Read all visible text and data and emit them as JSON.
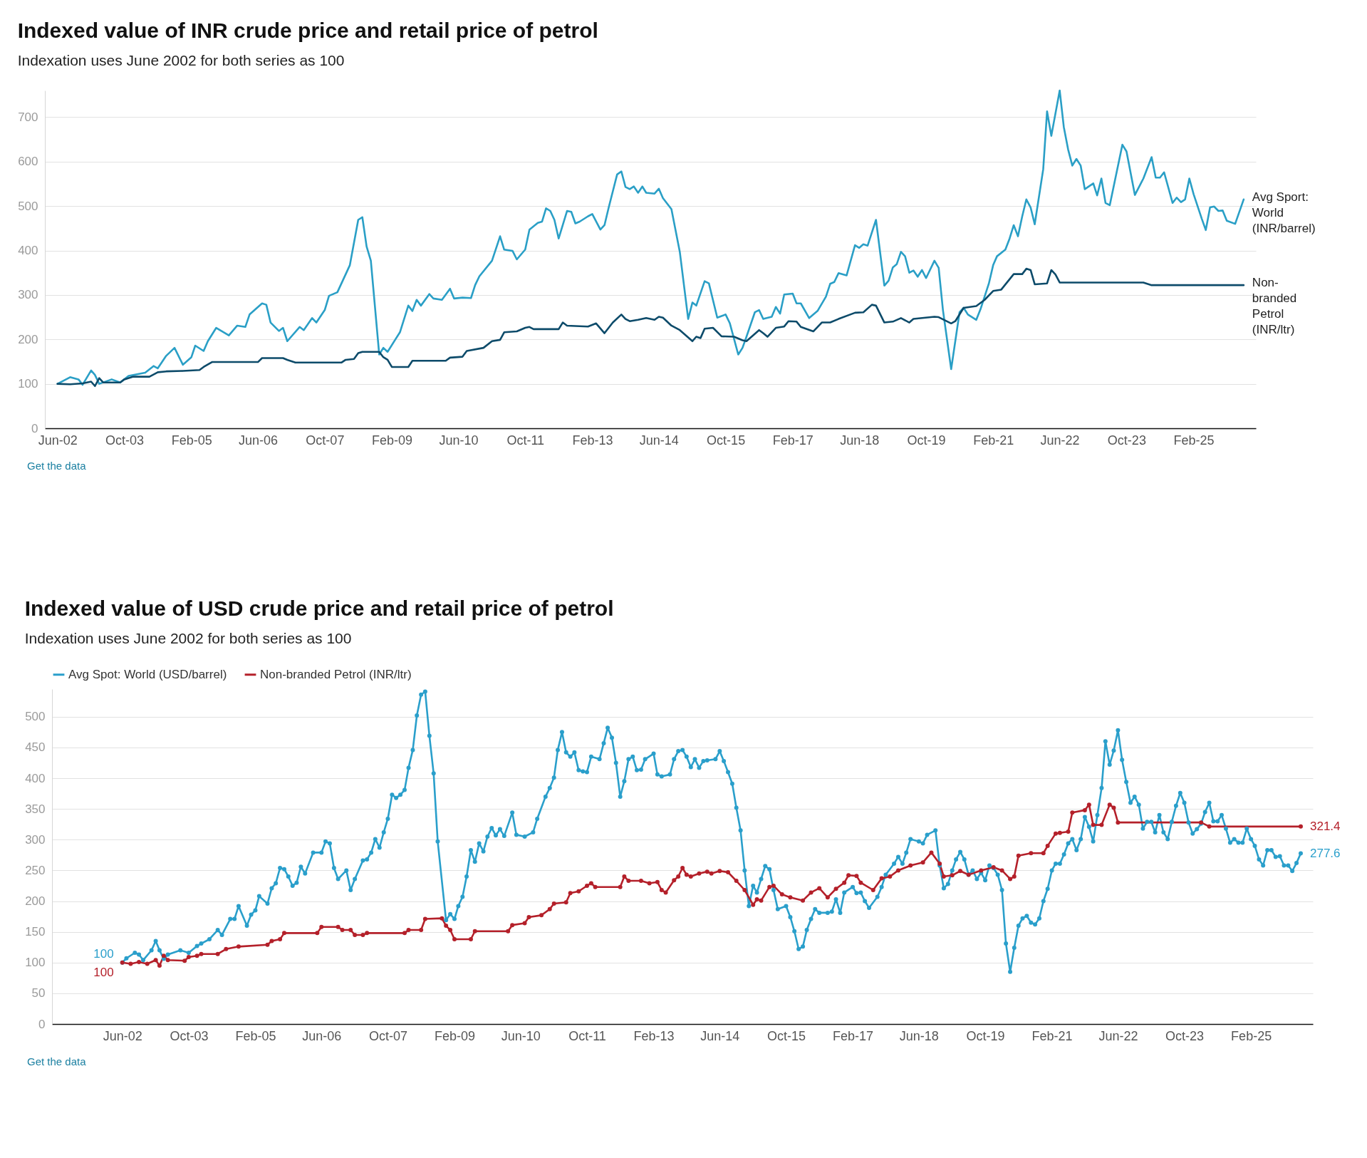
{
  "chart_data": [
    {
      "type": "line",
      "title": "Indexed value of INR crude price and retail price of petrol",
      "subtitle": "Indexation uses June 2002 for both series as 100",
      "annotations": [
        "Get the data"
      ],
      "xlim": [
        "2002-03",
        "2026-05"
      ],
      "ylim": [
        0,
        760
      ],
      "yticks": [
        0,
        100,
        200,
        300,
        400,
        500,
        600,
        700
      ],
      "xticks": [
        {
          "value": "2002-06",
          "label": "Jun-02"
        },
        {
          "value": "2003-10",
          "label": "Oct-03"
        },
        {
          "value": "2005-02",
          "label": "Feb-05"
        },
        {
          "value": "2006-06",
          "label": "Jun-06"
        },
        {
          "value": "2007-10",
          "label": "Oct-07"
        },
        {
          "value": "2009-02",
          "label": "Feb-09"
        },
        {
          "value": "2010-06",
          "label": "Jun-10"
        },
        {
          "value": "2011-10",
          "label": "Oct-11"
        },
        {
          "value": "2013-02",
          "label": "Feb-13"
        },
        {
          "value": "2014-06",
          "label": "Jun-14"
        },
        {
          "value": "2015-10",
          "label": "Oct-15"
        },
        {
          "value": "2017-02",
          "label": "Feb-17"
        },
        {
          "value": "2018-06",
          "label": "Jun-18"
        },
        {
          "value": "2019-10",
          "label": "Oct-19"
        },
        {
          "value": "2021-02",
          "label": "Feb-21"
        },
        {
          "value": "2022-06",
          "label": "Jun-22"
        },
        {
          "value": "2023-10",
          "label": "Oct-23"
        },
        {
          "value": "2025-02",
          "label": "Feb-25"
        }
      ],
      "grid": "y",
      "legend": false,
      "series": [
        {
          "name": "Avg Sport: World (INR/barrel)",
          "color": "#2a9fc6",
          "x": [
            "2002-06",
            "2002-09",
            "2002-11",
            "2002-12",
            "2003-02",
            "2003-03",
            "2003-04",
            "2003-07",
            "2003-09",
            "2003-11",
            "2004-03",
            "2004-05",
            "2004-06",
            "2004-08",
            "2004-10",
            "2004-12",
            "2005-02",
            "2005-03",
            "2005-05",
            "2005-06",
            "2005-08",
            "2005-11",
            "2006-01",
            "2006-03",
            "2006-04",
            "2006-07",
            "2006-08",
            "2006-09",
            "2006-11",
            "2006-12",
            "2007-01",
            "2007-04",
            "2007-05",
            "2007-07",
            "2007-08",
            "2007-10",
            "2007-11",
            "2008-01",
            "2008-04",
            "2008-06",
            "2008-07",
            "2008-08",
            "2008-09",
            "2008-11",
            "2008-12",
            "2009-01",
            "2009-03",
            "2009-04",
            "2009-06",
            "2009-07",
            "2009-08",
            "2009-09",
            "2009-11",
            "2009-12",
            "2010-02",
            "2010-04",
            "2010-05",
            "2010-07",
            "2010-09",
            "2010-10",
            "2010-11",
            "2011-02",
            "2011-04",
            "2011-05",
            "2011-07",
            "2011-08",
            "2011-10",
            "2011-11",
            "2012-01",
            "2012-02",
            "2012-03",
            "2012-04",
            "2012-05",
            "2012-06",
            "2012-08",
            "2012-09",
            "2012-10",
            "2012-11",
            "2013-01",
            "2013-02",
            "2013-04",
            "2013-05",
            "2013-06",
            "2013-08",
            "2013-09",
            "2013-10",
            "2013-11",
            "2013-12",
            "2014-01",
            "2014-02",
            "2014-03",
            "2014-05",
            "2014-06",
            "2014-07",
            "2014-09",
            "2014-11",
            "2015-01",
            "2015-02",
            "2015-03",
            "2015-05",
            "2015-06",
            "2015-08",
            "2015-10",
            "2015-11",
            "2016-01",
            "2016-02",
            "2016-03",
            "2016-05",
            "2016-06",
            "2016-07",
            "2016-09",
            "2016-10",
            "2016-11",
            "2016-12",
            "2017-02",
            "2017-03",
            "2017-04",
            "2017-06",
            "2017-08",
            "2017-10",
            "2017-11",
            "2017-12",
            "2018-01",
            "2018-03",
            "2018-05",
            "2018-06",
            "2018-07",
            "2018-08",
            "2018-10",
            "2018-12",
            "2019-01",
            "2019-02",
            "2019-03",
            "2019-04",
            "2019-05",
            "2019-06",
            "2019-07",
            "2019-08",
            "2019-09",
            "2019-10",
            "2019-12",
            "2020-01",
            "2020-02",
            "2020-04",
            "2020-06",
            "2020-07",
            "2020-08",
            "2020-10",
            "2020-11",
            "2021-01",
            "2021-02",
            "2021-03",
            "2021-05",
            "2021-06",
            "2021-07",
            "2021-08",
            "2021-09",
            "2021-10",
            "2021-11",
            "2021-12",
            "2022-02",
            "2022-03",
            "2022-04",
            "2022-06",
            "2022-07",
            "2022-08",
            "2022-09",
            "2022-10",
            "2022-11",
            "2022-12",
            "2023-02",
            "2023-03",
            "2023-04",
            "2023-05",
            "2023-06",
            "2023-09",
            "2023-10",
            "2023-12",
            "2024-02",
            "2024-04",
            "2024-05",
            "2024-06",
            "2024-07",
            "2024-09",
            "2024-10",
            "2024-11",
            "2024-12",
            "2025-01",
            "2025-02",
            "2025-04",
            "2025-05",
            "2025-06",
            "2025-07",
            "2025-08",
            "2025-09",
            "2025-10",
            "2025-12",
            "2026-02"
          ],
          "values": [
            100,
            115,
            110,
            98,
            130,
            120,
            100,
            110,
            103,
            118,
            125,
            140,
            135,
            163,
            181,
            143,
            160,
            186,
            174,
            196,
            226,
            209,
            231,
            228,
            256,
            281,
            278,
            238,
            219,
            226,
            196,
            228,
            221,
            248,
            238,
            266,
            298,
            306,
            367,
            469,
            475,
            409,
            377,
            166,
            181,
            172,
            201,
            216,
            276,
            264,
            289,
            276,
            302,
            292,
            289,
            314,
            292,
            294,
            293,
            322,
            342,
            377,
            432,
            402,
            399,
            380,
            402,
            447,
            462,
            465,
            495,
            489,
            469,
            427,
            489,
            487,
            461,
            465,
            477,
            482,
            447,
            457,
            497,
            571,
            578,
            543,
            538,
            544,
            530,
            544,
            530,
            528,
            539,
            518,
            493,
            397,
            246,
            283,
            276,
            331,
            326,
            249,
            256,
            236,
            166,
            181,
            206,
            261,
            266,
            246,
            251,
            273,
            258,
            301,
            303,
            281,
            281,
            248,
            264,
            296,
            325,
            329,
            349,
            344,
            412,
            406,
            414,
            411,
            469,
            321,
            332,
            362,
            369,
            397,
            387,
            350,
            355,
            341,
            356,
            338,
            377,
            361,
            266,
            133,
            261,
            271,
            256,
            244,
            268,
            326,
            367,
            387,
            402,
            427,
            457,
            432,
            477,
            515,
            497,
            459,
            583,
            713,
            658,
            760,
            678,
            628,
            591,
            606,
            591,
            538,
            551,
            524,
            562,
            507,
            502,
            638,
            623,
            525,
            562,
            610,
            564,
            564,
            576,
            507,
            519,
            509,
            515,
            562,
            527,
            472,
            446,
            497,
            499,
            489,
            490,
            467,
            460,
            515
          ]
        },
        {
          "name": "Non-branded Petrol (INR/ltr)",
          "color": "#0d4b6a",
          "x": [
            "2002-06",
            "2002-09",
            "2002-12",
            "2003-02",
            "2003-03",
            "2003-04",
            "2003-05",
            "2003-09",
            "2003-10",
            "2003-12",
            "2004-04",
            "2004-06",
            "2004-08",
            "2004-12",
            "2005-04",
            "2005-05",
            "2005-07",
            "2006-06",
            "2006-07",
            "2006-12",
            "2007-01",
            "2007-03",
            "2008-02",
            "2008-03",
            "2008-05",
            "2008-06",
            "2008-07",
            "2008-11",
            "2008-12",
            "2009-01",
            "2009-02",
            "2009-06",
            "2009-07",
            "2010-03",
            "2010-04",
            "2010-07",
            "2010-08",
            "2010-12",
            "2011-02",
            "2011-04",
            "2011-05",
            "2011-08",
            "2011-10",
            "2011-11",
            "2011-12",
            "2012-06",
            "2012-07",
            "2012-08",
            "2013-01",
            "2013-03",
            "2013-05",
            "2013-07",
            "2013-09",
            "2013-10",
            "2013-11",
            "2014-01",
            "2014-03",
            "2014-05",
            "2014-06",
            "2014-07",
            "2014-09",
            "2014-11",
            "2015-02",
            "2015-03",
            "2015-04",
            "2015-05",
            "2015-07",
            "2015-09",
            "2015-12",
            "2016-02",
            "2016-03",
            "2016-06",
            "2016-07",
            "2016-08",
            "2016-10",
            "2016-12",
            "2017-01",
            "2017-03",
            "2017-04",
            "2017-07",
            "2017-09",
            "2017-11",
            "2018-01",
            "2018-05",
            "2018-07",
            "2018-09",
            "2018-10",
            "2018-12",
            "2019-02",
            "2019-04",
            "2019-06",
            "2019-07",
            "2019-12",
            "2020-01",
            "2020-04",
            "2020-05",
            "2020-07",
            "2020-10",
            "2020-12",
            "2021-02",
            "2021-04",
            "2021-07",
            "2021-09",
            "2021-10",
            "2021-11",
            "2021-12",
            "2022-03",
            "2022-04",
            "2022-05",
            "2022-06",
            "2024-02",
            "2024-04",
            "2026-02"
          ],
          "values": [
            100,
            99,
            101,
            105,
            95,
            113,
            103,
            103,
            110,
            116,
            116,
            126,
            128,
            129,
            131,
            138,
            149,
            149,
            158,
            158,
            154,
            148,
            148,
            154,
            156,
            169,
            172,
            172,
            160,
            154,
            138,
            138,
            152,
            152,
            159,
            161,
            174,
            181,
            196,
            199,
            216,
            218,
            226,
            228,
            223,
            223,
            238,
            231,
            229,
            236,
            214,
            238,
            256,
            246,
            241,
            244,
            248,
            244,
            251,
            249,
            231,
            221,
            196,
            206,
            203,
            224,
            226,
            207,
            206,
            198,
            196,
            221,
            214,
            206,
            226,
            229,
            241,
            240,
            228,
            218,
            238,
            238,
            246,
            260,
            261,
            278,
            276,
            238,
            240,
            248,
            238,
            246,
            251,
            250,
            236,
            241,
            271,
            275,
            289,
            309,
            312,
            347,
            347,
            359,
            356,
            324,
            326,
            356,
            346,
            328,
            328,
            322,
            322
          ]
        }
      ]
    },
    {
      "type": "line",
      "title": "Indexed value of USD crude price and retail price of petrol",
      "subtitle": "Indexation uses June 2002 for both series as 100",
      "annotations": [
        "Get the data"
      ],
      "xlim": [
        "2001-01",
        "2026-05"
      ],
      "ylim": [
        0,
        545
      ],
      "yticks": [
        0,
        50,
        100,
        150,
        200,
        250,
        300,
        350,
        400,
        450,
        500
      ],
      "xticks": [
        {
          "value": "2002-06",
          "label": "Jun-02"
        },
        {
          "value": "2003-10",
          "label": "Oct-03"
        },
        {
          "value": "2005-02",
          "label": "Feb-05"
        },
        {
          "value": "2006-06",
          "label": "Jun-06"
        },
        {
          "value": "2007-10",
          "label": "Oct-07"
        },
        {
          "value": "2009-02",
          "label": "Feb-09"
        },
        {
          "value": "2010-06",
          "label": "Jun-10"
        },
        {
          "value": "2011-10",
          "label": "Oct-11"
        },
        {
          "value": "2013-02",
          "label": "Feb-13"
        },
        {
          "value": "2014-06",
          "label": "Jun-14"
        },
        {
          "value": "2015-10",
          "label": "Oct-15"
        },
        {
          "value": "2017-02",
          "label": "Feb-17"
        },
        {
          "value": "2018-06",
          "label": "Jun-18"
        },
        {
          "value": "2019-10",
          "label": "Oct-19"
        },
        {
          "value": "2021-02",
          "label": "Feb-21"
        },
        {
          "value": "2022-06",
          "label": "Jun-22"
        },
        {
          "value": "2023-10",
          "label": "Oct-23"
        },
        {
          "value": "2025-02",
          "label": "Feb-25"
        }
      ],
      "grid": "y",
      "legend": "top left",
      "marker": "circle",
      "series": [
        {
          "name": "Avg Spot: World (USD/barrel)",
          "color": "#2a9fcb",
          "x": [
            "2002-06",
            "2002-07",
            "2002-09",
            "2002-10",
            "2002-11",
            "2003-01",
            "2003-02",
            "2003-03",
            "2003-04",
            "2003-05",
            "2003-08",
            "2003-10",
            "2003-12",
            "2004-01",
            "2004-03",
            "2004-05",
            "2004-06",
            "2004-08",
            "2004-09",
            "2004-10",
            "2004-12",
            "2005-01",
            "2005-02",
            "2005-03",
            "2005-05",
            "2005-06",
            "2005-07",
            "2005-08",
            "2005-09",
            "2005-10",
            "2005-11",
            "2005-12",
            "2006-01",
            "2006-02",
            "2006-04",
            "2006-06",
            "2006-07",
            "2006-08",
            "2006-09",
            "2006-10",
            "2006-12",
            "2007-01",
            "2007-02",
            "2007-04",
            "2007-05",
            "2007-06",
            "2007-07",
            "2007-08",
            "2007-09",
            "2007-10",
            "2007-11",
            "2007-12",
            "2008-01",
            "2008-02",
            "2008-03",
            "2008-04",
            "2008-05",
            "2008-06",
            "2008-07",
            "2008-08",
            "2008-09",
            "2008-10",
            "2008-12",
            "2009-01",
            "2009-02",
            "2009-03",
            "2009-04",
            "2009-05",
            "2009-06",
            "2009-07",
            "2009-08",
            "2009-09",
            "2009-10",
            "2009-11",
            "2009-12",
            "2010-01",
            "2010-02",
            "2010-04",
            "2010-05",
            "2010-07",
            "2010-09",
            "2010-10",
            "2010-12",
            "2011-01",
            "2011-02",
            "2011-03",
            "2011-04",
            "2011-05",
            "2011-06",
            "2011-07",
            "2011-08",
            "2011-09",
            "2011-10",
            "2011-11",
            "2012-01",
            "2012-02",
            "2012-03",
            "2012-04",
            "2012-05",
            "2012-06",
            "2012-07",
            "2012-08",
            "2012-09",
            "2012-10",
            "2012-11",
            "2012-12",
            "2013-02",
            "2013-03",
            "2013-04",
            "2013-06",
            "2013-07",
            "2013-08",
            "2013-09",
            "2013-10",
            "2013-11",
            "2013-12",
            "2014-01",
            "2014-02",
            "2014-03",
            "2014-05",
            "2014-06",
            "2014-07",
            "2014-08",
            "2014-09",
            "2014-10",
            "2014-11",
            "2014-12",
            "2015-01",
            "2015-02",
            "2015-03",
            "2015-04",
            "2015-05",
            "2015-06",
            "2015-07",
            "2015-08",
            "2015-10",
            "2015-11",
            "2015-12",
            "2016-01",
            "2016-02",
            "2016-03",
            "2016-04",
            "2016-05",
            "2016-06",
            "2016-08",
            "2016-09",
            "2016-10",
            "2016-11",
            "2016-12",
            "2017-02",
            "2017-03",
            "2017-04",
            "2017-05",
            "2017-06",
            "2017-08",
            "2017-09",
            "2017-10",
            "2017-12",
            "2018-01",
            "2018-02",
            "2018-03",
            "2018-04",
            "2018-06",
            "2018-07",
            "2018-08",
            "2018-10",
            "2018-11",
            "2018-12",
            "2019-01",
            "2019-02",
            "2019-03",
            "2019-04",
            "2019-05",
            "2019-06",
            "2019-07",
            "2019-08",
            "2019-09",
            "2019-10",
            "2019-11",
            "2019-12",
            "2020-01",
            "2020-02",
            "2020-03",
            "2020-04",
            "2020-05",
            "2020-06",
            "2020-07",
            "2020-08",
            "2020-09",
            "2020-10",
            "2020-11",
            "2020-12",
            "2021-01",
            "2021-02",
            "2021-03",
            "2021-04",
            "2021-05",
            "2021-06",
            "2021-07",
            "2021-08",
            "2021-09",
            "2021-10",
            "2021-11",
            "2021-12",
            "2022-01",
            "2022-02",
            "2022-03",
            "2022-04",
            "2022-05",
            "2022-06",
            "2022-07",
            "2022-08",
            "2022-09",
            "2022-10",
            "2022-11",
            "2022-12",
            "2023-01",
            "2023-02",
            "2023-03",
            "2023-04",
            "2023-05",
            "2023-06",
            "2023-07",
            "2023-08",
            "2023-09",
            "2023-10",
            "2023-11",
            "2023-12",
            "2024-01",
            "2024-02",
            "2024-03",
            "2024-04",
            "2024-05",
            "2024-06",
            "2024-07",
            "2024-08",
            "2024-09",
            "2024-10",
            "2024-11",
            "2024-12",
            "2025-01",
            "2025-02",
            "2025-03",
            "2025-04",
            "2025-05",
            "2025-06",
            "2025-07",
            "2025-08",
            "2025-09",
            "2025-10",
            "2025-11",
            "2025-12",
            "2026-01",
            "2026-02"
          ],
          "values": [
            100,
            107,
            116,
            113,
            104,
            120,
            135,
            120,
            106,
            113,
            120,
            116,
            127,
            131,
            138,
            153,
            145,
            171,
            171,
            192,
            160,
            178,
            185,
            208,
            196,
            221,
            229,
            254,
            252,
            240,
            225,
            230,
            256,
            245,
            279,
            279,
            297,
            294,
            254,
            236,
            250,
            218,
            236,
            266,
            268,
            279,
            301,
            287,
            312,
            334,
            373,
            368,
            373,
            381,
            417,
            446,
            502,
            536,
            541,
            469,
            408,
            297,
            169,
            179,
            171,
            192,
            207,
            240,
            283,
            264,
            294,
            281,
            305,
            319,
            307,
            317,
            306,
            344,
            308,
            305,
            312,
            334,
            370,
            384,
            401,
            446,
            475,
            442,
            435,
            442,
            413,
            411,
            410,
            435,
            431,
            457,
            482,
            466,
            425,
            370,
            395,
            431,
            435,
            413,
            414,
            431,
            440,
            406,
            403,
            406,
            431,
            444,
            446,
            435,
            418,
            431,
            417,
            428,
            429,
            431,
            444,
            428,
            410,
            391,
            352,
            315,
            250,
            192,
            225,
            214,
            236,
            257,
            252,
            218,
            187,
            192,
            174,
            151,
            122,
            126,
            153,
            171,
            187,
            181,
            181,
            183,
            203,
            181,
            214,
            223,
            213,
            214,
            200,
            189,
            207,
            223,
            243,
            261,
            272,
            261,
            279,
            301,
            297,
            294,
            308,
            315,
            258,
            221,
            228,
            250,
            268,
            280,
            268,
            243,
            250,
            236,
            246,
            234,
            258,
            254,
            243,
            218,
            131,
            85,
            124,
            160,
            172,
            176,
            165,
            162,
            172,
            200,
            220,
            250,
            261,
            261,
            276,
            294,
            301,
            283,
            301,
            337,
            321,
            297,
            340,
            384,
            460,
            422,
            445,
            478,
            430,
            394,
            360,
            370,
            357,
            318,
            329,
            329,
            312,
            340,
            312,
            301,
            329,
            355,
            376,
            360,
            328,
            310,
            317,
            326,
            345,
            360,
            330,
            330,
            340,
            318,
            295,
            301,
            295,
            295,
            318,
            301,
            290,
            268,
            258,
            283,
            283,
            272,
            273,
            258,
            258,
            249,
            262,
            277.6
          ],
          "value_labels": [
            "100",
            null,
            null,
            null,
            null,
            null,
            null,
            null,
            null,
            null,
            null,
            null,
            null,
            null,
            null,
            null,
            null,
            null,
            null,
            null,
            null,
            null,
            null,
            null,
            null,
            null,
            null,
            null,
            null,
            null,
            null,
            null,
            null,
            null,
            null,
            null,
            null,
            null,
            null,
            null,
            null,
            null,
            null,
            null,
            null,
            null,
            null,
            null,
            null,
            null,
            null,
            null,
            null,
            null,
            null,
            null,
            null,
            null,
            null,
            null,
            null,
            null,
            null,
            null,
            null,
            null,
            null,
            null,
            null,
            null,
            null,
            null,
            null,
            null,
            null,
            null,
            null,
            null,
            null,
            null,
            null,
            null,
            null,
            null,
            null,
            null,
            null,
            null,
            null,
            null,
            null,
            null,
            null,
            null,
            null,
            null,
            null,
            null,
            null,
            null,
            null,
            null,
            null,
            null,
            null,
            null,
            null,
            null,
            null,
            null,
            null,
            null,
            null,
            null,
            null,
            null,
            null,
            null,
            null,
            null,
            null,
            null,
            null,
            null,
            null,
            null,
            null,
            null,
            null,
            null,
            null,
            null,
            null,
            null,
            null,
            null,
            null,
            null,
            null,
            null,
            null,
            null,
            null,
            null,
            null,
            null,
            null,
            null,
            null,
            null,
            null,
            null,
            null,
            null,
            null,
            null,
            null,
            null,
            null,
            null,
            null,
            null,
            null,
            null,
            null,
            null,
            null,
            null,
            null,
            null,
            null,
            null,
            null,
            null,
            null,
            null,
            null,
            null,
            null,
            null,
            null,
            null,
            null,
            null,
            null,
            null,
            null,
            null,
            null,
            null,
            null,
            null,
            null,
            null,
            null,
            null,
            null,
            null,
            null,
            null,
            null,
            null,
            null,
            null,
            null,
            null,
            null,
            null,
            null,
            null,
            null,
            null,
            null,
            null,
            null,
            null,
            null,
            null,
            null,
            null,
            null,
            null,
            null,
            null,
            null,
            null,
            null,
            null,
            null,
            null,
            null,
            null,
            null,
            null,
            null,
            null,
            null,
            null,
            null,
            null,
            null,
            null,
            null,
            null,
            null,
            null,
            null,
            null,
            null,
            null,
            null,
            null,
            null,
            "277.6"
          ]
        },
        {
          "name": "Non-branded Petrol (INR/ltr)",
          "color": "#b4202a",
          "x": [
            "2002-06",
            "2002-08",
            "2002-10",
            "2002-12",
            "2003-02",
            "2003-03",
            "2003-04",
            "2003-05",
            "2003-09",
            "2003-10",
            "2003-12",
            "2004-01",
            "2004-05",
            "2004-07",
            "2004-10",
            "2005-05",
            "2005-06",
            "2005-08",
            "2005-09",
            "2006-05",
            "2006-06",
            "2006-10",
            "2006-11",
            "2007-01",
            "2007-02",
            "2007-04",
            "2007-05",
            "2008-02",
            "2008-03",
            "2008-06",
            "2008-07",
            "2008-11",
            "2008-12",
            "2009-01",
            "2009-02",
            "2009-06",
            "2009-07",
            "2010-03",
            "2010-04",
            "2010-07",
            "2010-08",
            "2010-11",
            "2011-01",
            "2011-02",
            "2011-05",
            "2011-06",
            "2011-08",
            "2011-10",
            "2011-11",
            "2011-12",
            "2012-06",
            "2012-07",
            "2012-08",
            "2012-11",
            "2013-01",
            "2013-03",
            "2013-04",
            "2013-05",
            "2013-07",
            "2013-08",
            "2013-09",
            "2013-10",
            "2013-11",
            "2014-01",
            "2014-03",
            "2014-04",
            "2014-06",
            "2014-08",
            "2014-10",
            "2014-12",
            "2015-02",
            "2015-03",
            "2015-04",
            "2015-06",
            "2015-07",
            "2015-09",
            "2015-11",
            "2016-02",
            "2016-04",
            "2016-06",
            "2016-08",
            "2016-10",
            "2016-12",
            "2017-01",
            "2017-03",
            "2017-04",
            "2017-07",
            "2017-09",
            "2017-11",
            "2018-01",
            "2018-04",
            "2018-07",
            "2018-09",
            "2018-11",
            "2018-12",
            "2019-02",
            "2019-04",
            "2019-06",
            "2019-09",
            "2019-12",
            "2020-02",
            "2020-04",
            "2020-05",
            "2020-06",
            "2020-09",
            "2020-12",
            "2021-01",
            "2021-03",
            "2021-04",
            "2021-06",
            "2021-07",
            "2021-10",
            "2021-11",
            "2021-12",
            "2022-02",
            "2022-04",
            "2022-05",
            "2022-06",
            "2024-02",
            "2024-04",
            "2026-02"
          ],
          "values": [
            100,
            98,
            101,
            98,
            104,
            95,
            111,
            104,
            103,
            109,
            111,
            114,
            114,
            122,
            126,
            129,
            135,
            138,
            148,
            148,
            158,
            158,
            153,
            153,
            145,
            145,
            148,
            148,
            153,
            153,
            171,
            172,
            160,
            153,
            138,
            138,
            151,
            151,
            161,
            164,
            174,
            177,
            187,
            196,
            198,
            213,
            216,
            225,
            229,
            223,
            223,
            240,
            233,
            233,
            229,
            231,
            218,
            214,
            234,
            240,
            254,
            243,
            240,
            245,
            248,
            245,
            249,
            247,
            233,
            218,
            194,
            203,
            201,
            223,
            225,
            211,
            206,
            201,
            214,
            221,
            206,
            220,
            230,
            242,
            241,
            230,
            218,
            237,
            240,
            250,
            258,
            263,
            279,
            261,
            240,
            242,
            249,
            243,
            250,
            255,
            250,
            236,
            240,
            274,
            278,
            278,
            290,
            310,
            311,
            313,
            344,
            348,
            357,
            324,
            324,
            357,
            352,
            328,
            328,
            321.4,
            321.4
          ],
          "value_labels": [
            "100",
            null,
            null,
            null,
            null,
            null,
            null,
            null,
            null,
            null,
            null,
            null,
            null,
            null,
            null,
            null,
            null,
            null,
            null,
            null,
            null,
            null,
            null,
            null,
            null,
            null,
            null,
            null,
            null,
            null,
            null,
            null,
            null,
            null,
            null,
            null,
            null,
            null,
            null,
            null,
            null,
            null,
            null,
            null,
            null,
            null,
            null,
            null,
            null,
            null,
            null,
            null,
            null,
            null,
            null,
            null,
            null,
            null,
            null,
            null,
            null,
            null,
            null,
            null,
            null,
            null,
            null,
            null,
            null,
            null,
            null,
            null,
            null,
            null,
            null,
            null,
            null,
            null,
            null,
            null,
            null,
            null,
            null,
            null,
            null,
            null,
            null,
            null,
            null,
            null,
            null,
            null,
            null,
            null,
            null,
            null,
            null,
            null,
            null,
            null,
            null,
            null,
            null,
            null,
            null,
            null,
            null,
            null,
            null,
            null,
            null,
            null,
            null,
            null,
            null,
            null,
            null,
            null,
            null,
            null,
            "321.4"
          ]
        }
      ]
    }
  ]
}
